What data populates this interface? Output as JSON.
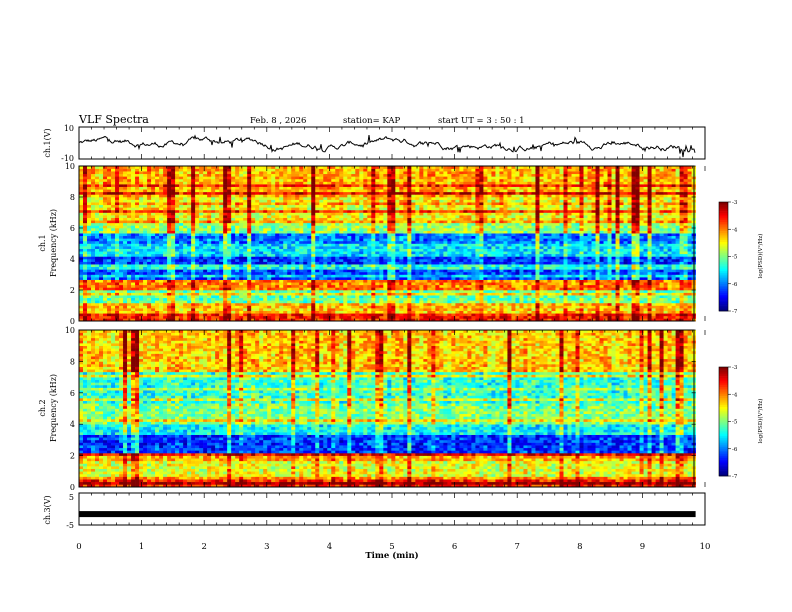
{
  "header": {
    "title": "VLF Spectra",
    "date": "Feb. 8 , 2026",
    "station": "station= KAP",
    "start_ut": "start UT =  3 : 50 : 1"
  },
  "colors": {
    "trace": "#000000",
    "background": "#ffffff"
  },
  "chart_data": [
    {
      "type": "line",
      "panel": "ch1-waveform",
      "ylabel": "ch.1(V)",
      "ylim": [
        -10,
        10
      ],
      "yticks": [
        "10",
        "-10"
      ],
      "xlim": [
        0,
        9.85
      ],
      "note": "noisy waveform oscillating roughly between -5 and 5 V"
    },
    {
      "type": "heatmap",
      "panel": "ch1-spectrogram",
      "ylabel_line1": "ch.1",
      "ylabel_line2": "Frequency  (kHz)",
      "ylim": [
        0,
        10
      ],
      "yticks": [
        "0",
        "2",
        "4",
        "6",
        "8",
        "10"
      ],
      "xlim": [
        0,
        9.85
      ],
      "colorbar": {
        "label": "log(PSD)(V²/Hz)",
        "range": [
          -7,
          -3
        ],
        "ticks": [
          "-3",
          "-4",
          "-5",
          "-6",
          "-7"
        ]
      },
      "bands": [
        {
          "f0": 0.0,
          "f1": 0.5,
          "level": -3.6
        },
        {
          "f0": 0.5,
          "f1": 1.2,
          "level": -4.3
        },
        {
          "f0": 1.2,
          "f1": 2.0,
          "level": -5.1
        },
        {
          "f0": 2.0,
          "f1": 2.6,
          "level": -4.0
        },
        {
          "f0": 2.6,
          "f1": 3.4,
          "level": -6.2
        },
        {
          "f0": 3.4,
          "f1": 3.7,
          "level": -5.4
        },
        {
          "f0": 3.7,
          "f1": 4.4,
          "level": -6.3
        },
        {
          "f0": 4.4,
          "f1": 5.0,
          "level": -5.6
        },
        {
          "f0": 5.0,
          "f1": 5.6,
          "level": -6.0
        },
        {
          "f0": 5.6,
          "f1": 6.6,
          "level": -4.9
        },
        {
          "f0": 6.6,
          "f1": 8.0,
          "level": -4.5
        },
        {
          "f0": 8.0,
          "f1": 10.0,
          "level": -4.2
        }
      ]
    },
    {
      "type": "heatmap",
      "panel": "ch2-spectrogram",
      "ylabel_line1": "ch.2",
      "ylabel_line2": "Frequency  (kHz)",
      "ylim": [
        0,
        10
      ],
      "yticks": [
        "0",
        "2",
        "4",
        "6",
        "8",
        "10"
      ],
      "xlim": [
        0,
        9.85
      ],
      "colorbar": {
        "label": "log(PSD)(V²/Hz)",
        "range": [
          -7,
          -3
        ],
        "ticks": [
          "-3",
          "-4",
          "-5",
          "-6",
          "-7"
        ]
      },
      "bands": [
        {
          "f0": 0.0,
          "f1": 0.5,
          "level": -3.6
        },
        {
          "f0": 0.5,
          "f1": 1.6,
          "level": -4.6
        },
        {
          "f0": 1.6,
          "f1": 2.2,
          "level": -4.2
        },
        {
          "f0": 2.2,
          "f1": 3.4,
          "level": -6.3
        },
        {
          "f0": 3.4,
          "f1": 4.2,
          "level": -5.5
        },
        {
          "f0": 4.2,
          "f1": 5.4,
          "level": -5.0
        },
        {
          "f0": 5.4,
          "f1": 7.4,
          "level": -5.3
        },
        {
          "f0": 7.4,
          "f1": 10.0,
          "level": -4.3
        }
      ]
    },
    {
      "type": "line",
      "panel": "ch3-waveform",
      "ylabel": "ch.3(V)",
      "ylim": [
        -5,
        5
      ],
      "yticks": [
        "5",
        "-5"
      ],
      "xlim": [
        0,
        9.85
      ],
      "note": "near-constant thick trace around -1.6 V"
    }
  ],
  "xaxis": {
    "label": "Time  (min)",
    "range": [
      0,
      10
    ],
    "ticks": [
      "0",
      "1",
      "2",
      "3",
      "4",
      "5",
      "6",
      "7",
      "8",
      "9",
      "10"
    ]
  }
}
